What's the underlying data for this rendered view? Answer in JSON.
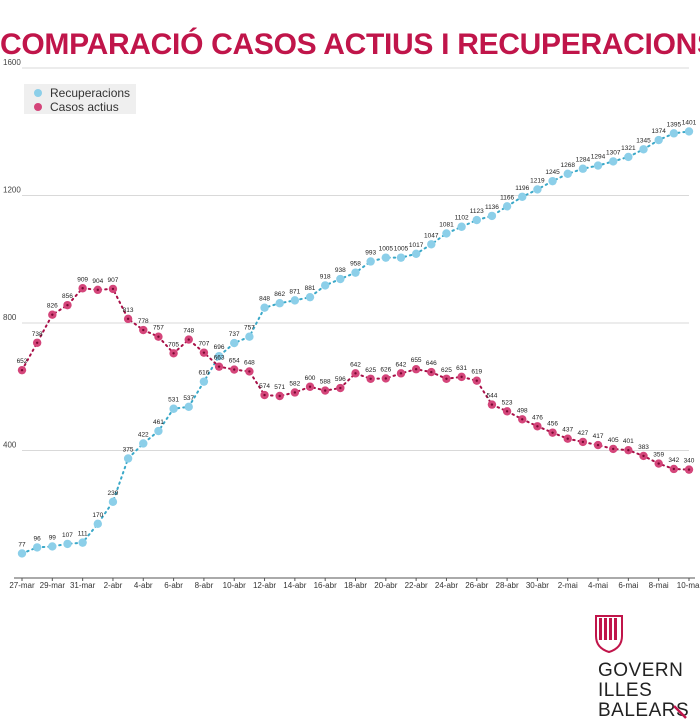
{
  "title": "COMPARACIÓ CASOS ACTIUS I RECUPERACIONS",
  "colors": {
    "title": "#c0154a",
    "recuperacions": "#8ccfe9",
    "recuperacions_dots": "#3aa8c8",
    "casos": "#d4457a",
    "casos_dots": "#a81048",
    "grid": "#d9d9d9",
    "logo": "#c0154a"
  },
  "brand": {
    "line1": "GOVERN",
    "line2": "ILLES",
    "line3": "BALEARS"
  },
  "chart_data": {
    "type": "line",
    "title": "COMPARACIÓ CASOS ACTIUS I RECUPERACIONS",
    "xlabel": "",
    "ylabel": "",
    "ylim": [
      0,
      1600
    ],
    "yticks": [
      400,
      800,
      1200,
      1600
    ],
    "x_tick_labels": [
      "27-mar",
      "29-mar",
      "31-mar",
      "2-abr",
      "4-abr",
      "6-abr",
      "8-abr",
      "10-abr",
      "12-abr",
      "14-abr",
      "16-abr",
      "18-abr",
      "20-abr",
      "22-abr",
      "24-abr",
      "26-abr",
      "28-abr",
      "30-abr",
      "2-mai",
      "4-mai",
      "6-mai",
      "8-mai",
      "10-mai"
    ],
    "legend_position": "top-left",
    "grid": true,
    "series": [
      {
        "name": "Recuperacions",
        "values": [
          77,
          96,
          99,
          107,
          111,
          170,
          239,
          375,
          422,
          461,
          531,
          537,
          616,
          696,
          737,
          757,
          848,
          862,
          871,
          881,
          918,
          938,
          958,
          993,
          1005,
          1005,
          1017,
          1047,
          1081,
          1102,
          1123,
          1136,
          1166,
          1196,
          1219,
          1245,
          1268,
          1284,
          1294,
          1307,
          1321,
          1345,
          1374,
          1395,
          1401
        ],
        "labels": [
          "77",
          "96",
          "99",
          "107",
          "111",
          "170",
          "239",
          "375",
          "422",
          "461",
          "531",
          "537",
          "616",
          "696",
          "737",
          "757",
          "848",
          "862",
          "871",
          "881",
          "918",
          "938",
          "958",
          "993",
          "1005",
          "1005",
          "1017",
          "1047",
          "1081",
          "1102",
          "1123",
          "1136",
          "1166",
          "1196",
          "1219",
          "1245",
          "1268",
          "1284",
          "1294",
          "1307",
          "1321",
          "1345",
          "1374",
          "1395",
          "1401"
        ]
      },
      {
        "name": "Casos actius",
        "values": [
          652,
          738,
          826,
          856,
          909,
          904,
          907,
          813,
          778,
          757,
          705,
          748,
          707,
          663,
          654,
          648,
          574,
          571,
          582,
          600,
          588,
          596,
          642,
          625,
          626,
          642,
          655,
          646,
          625,
          631,
          619,
          544,
          523,
          498,
          476,
          456,
          437,
          427,
          417,
          405,
          401,
          383,
          359,
          342,
          340
        ],
        "labels": [
          "652",
          "738",
          "826",
          "856",
          "909",
          "904",
          "907",
          "813",
          "778",
          "757",
          "705",
          "748",
          "707",
          "663",
          "654",
          "648",
          "574",
          "571",
          "582",
          "600",
          "588",
          "596",
          "642",
          "625",
          "626",
          "642",
          "655",
          "646",
          "625",
          "631",
          "619",
          "544",
          "523",
          "498",
          "476",
          "456",
          "437",
          "427",
          "417",
          "405",
          "401",
          "383",
          "359",
          "342",
          "340"
        ]
      }
    ]
  }
}
